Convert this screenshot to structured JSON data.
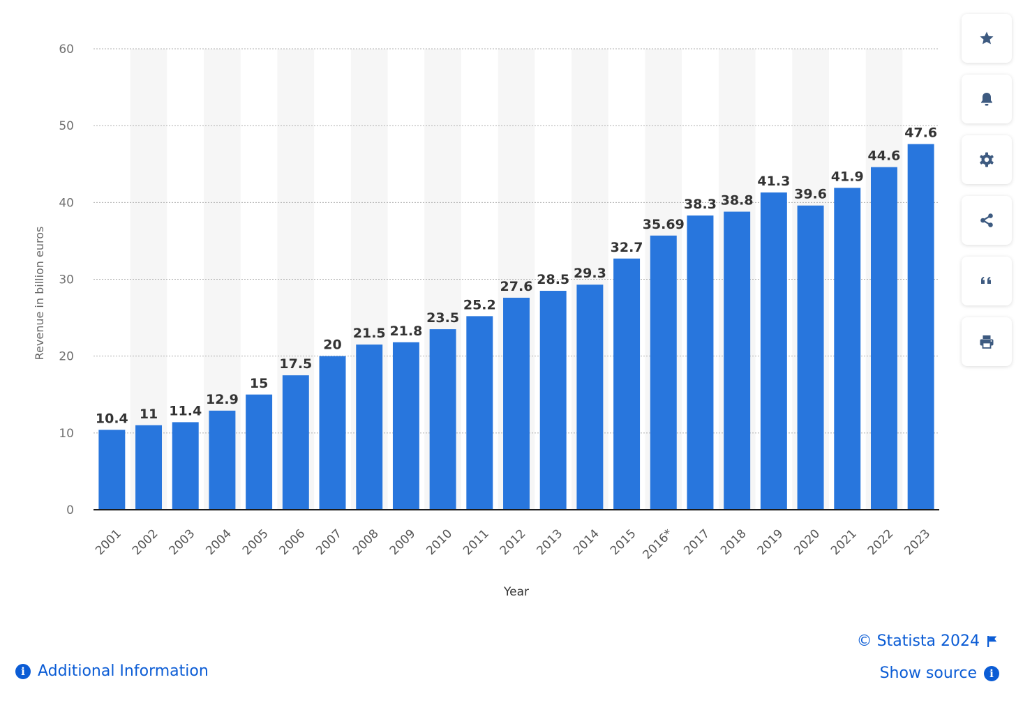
{
  "chart_data": {
    "type": "bar",
    "categories": [
      "2001",
      "2002",
      "2003",
      "2004",
      "2005",
      "2006",
      "2007",
      "2008",
      "2009",
      "2010",
      "2011",
      "2012",
      "2013",
      "2014",
      "2015",
      "2016*",
      "2017",
      "2018",
      "2019",
      "2020",
      "2021",
      "2022",
      "2023"
    ],
    "values": [
      10.4,
      11,
      11.4,
      12.9,
      15,
      17.5,
      20,
      21.5,
      21.8,
      23.5,
      25.2,
      27.6,
      28.5,
      29.3,
      32.7,
      35.69,
      38.3,
      38.8,
      41.3,
      39.6,
      41.9,
      44.6,
      47.6
    ],
    "value_labels": [
      "10.4",
      "11",
      "11.4",
      "12.9",
      "15",
      "17.5",
      "20",
      "21.5",
      "21.8",
      "23.5",
      "25.2",
      "27.6",
      "28.5",
      "29.3",
      "32.7",
      "35.69",
      "38.3",
      "38.8",
      "41.3",
      "39.6",
      "41.9",
      "44.6",
      "47.6"
    ],
    "xlabel": "Year",
    "ylabel": "Revenue in billion euros",
    "ylim": [
      0,
      60
    ],
    "yticks": [
      0,
      10,
      20,
      30,
      40,
      50,
      60
    ],
    "grid": true,
    "bar_color": "#2876dd",
    "band_color": "#f6f6f6"
  },
  "sidebar": {
    "buttons": [
      {
        "name": "favorite-button",
        "icon": "star-icon"
      },
      {
        "name": "notification-button",
        "icon": "bell-icon"
      },
      {
        "name": "settings-button",
        "icon": "gear-icon"
      },
      {
        "name": "share-button",
        "icon": "share-icon"
      },
      {
        "name": "cite-button",
        "icon": "quote-icon"
      },
      {
        "name": "print-button",
        "icon": "printer-icon"
      }
    ],
    "icon_color": "#3d5a80"
  },
  "footer": {
    "copyright": "© Statista 2024",
    "show_source": "Show source",
    "additional_info": "Additional Information",
    "link_color": "#0b5cd5"
  }
}
